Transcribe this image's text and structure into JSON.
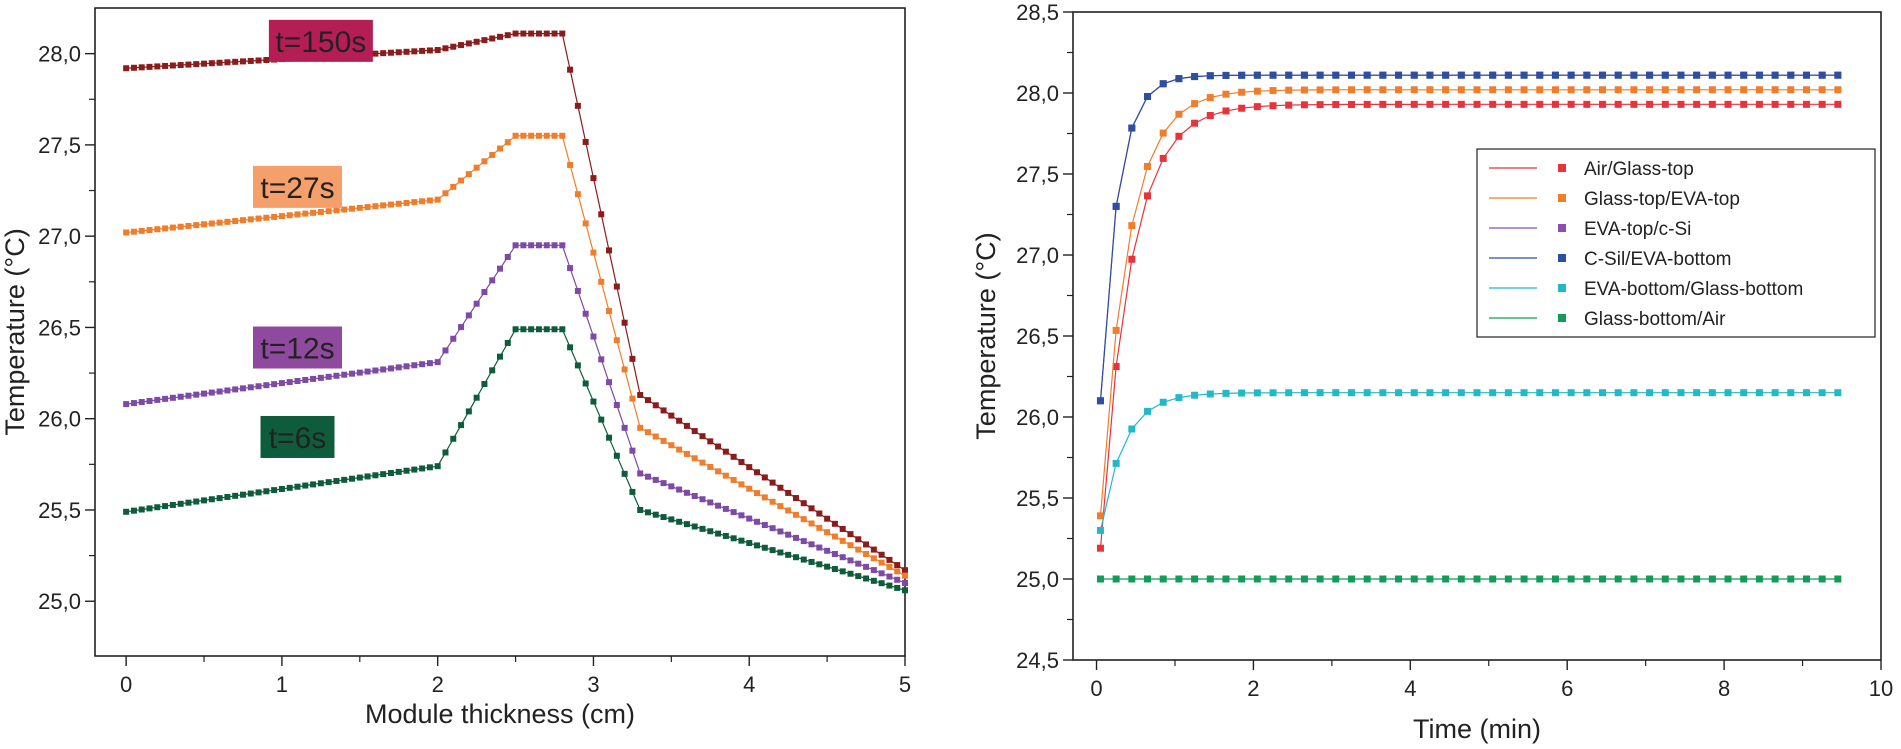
{
  "chart_data": [
    {
      "type": "line",
      "xlabel": "Module thickness (cm)",
      "ylabel": "Temperature (°C)",
      "xlim": [
        -0.2,
        5
      ],
      "ylim": [
        24.7,
        28.25
      ],
      "xticks": [
        0,
        1,
        2,
        3,
        4,
        5
      ],
      "xtick_labels": [
        "0",
        "1",
        "2",
        "3",
        "4",
        "5"
      ],
      "yticks": [
        25.0,
        25.5,
        26.0,
        26.5,
        27.0,
        27.5,
        28.0
      ],
      "ytick_labels": [
        "25,0",
        "25,5",
        "26,0",
        "26,5",
        "27,0",
        "27,5",
        "28,0"
      ],
      "series": [
        {
          "name": "t=150s",
          "color": "#8b1c1c",
          "label_bg": "#b51e55",
          "points": [
            [
              0,
              27.92
            ],
            [
              2.0,
              28.02
            ],
            [
              2.5,
              28.11
            ],
            [
              2.8,
              28.11
            ],
            [
              3.3,
              26.13
            ],
            [
              5.0,
              25.17
            ]
          ]
        },
        {
          "name": "t=27s",
          "color": "#f07d2b",
          "label_bg": "#f5a06a",
          "points": [
            [
              0,
              27.02
            ],
            [
              2.0,
              27.2
            ],
            [
              2.5,
              27.55
            ],
            [
              2.8,
              27.55
            ],
            [
              3.3,
              25.95
            ],
            [
              5.0,
              25.14
            ]
          ]
        },
        {
          "name": "t=12s",
          "color": "#7d4aa6",
          "label_bg": "#8f4a9f",
          "points": [
            [
              0,
              26.08
            ],
            [
              2.0,
              26.31
            ],
            [
              2.5,
              26.95
            ],
            [
              2.8,
              26.95
            ],
            [
              3.3,
              25.7
            ],
            [
              5.0,
              25.1
            ]
          ]
        },
        {
          "name": "t=6s",
          "color": "#0f5c3d",
          "label_bg": "#0f5c3d",
          "points": [
            [
              0,
              25.49
            ],
            [
              2.0,
              25.74
            ],
            [
              2.5,
              26.49
            ],
            [
              2.8,
              26.49
            ],
            [
              3.3,
              25.5
            ],
            [
              5.0,
              25.06
            ]
          ]
        }
      ]
    },
    {
      "type": "line",
      "xlabel": "Time (min)",
      "ylabel": "Temperature (°C)",
      "xlim": [
        -0.3,
        10
      ],
      "ylim": [
        24.5,
        28.5
      ],
      "xticks": [
        0,
        2,
        4,
        6,
        8,
        10
      ],
      "xtick_labels": [
        "0",
        "2",
        "4",
        "6",
        "8",
        "10"
      ],
      "yticks": [
        24.5,
        25.0,
        25.5,
        26.0,
        26.5,
        27.0,
        27.5,
        28.0,
        28.5
      ],
      "ytick_labels": [
        "24,5",
        "25,0",
        "25,5",
        "26,0",
        "26,5",
        "27,0",
        "27,5",
        "28,0",
        "28,5"
      ],
      "series": [
        {
          "name": "Air/Glass-top",
          "color": "#e8323c",
          "start": 25.19,
          "final": 27.93,
          "tau": 0.38
        },
        {
          "name": "Glass-top/EVA-top",
          "color": "#f07d2b",
          "start": 25.39,
          "final": 28.02,
          "tau": 0.35
        },
        {
          "name": "EVA-top/c-Si",
          "color": "#8e4cb5",
          "start": 26.1,
          "final": 28.11,
          "tau": 0.22
        },
        {
          "name": "C-Sil/EVA-bottom",
          "color": "#2d4fa0",
          "start": 26.1,
          "final": 28.11,
          "tau": 0.22
        },
        {
          "name": "EVA-bottom/Glass-bottom",
          "color": "#23b8c8",
          "start": 25.3,
          "final": 26.15,
          "tau": 0.3
        },
        {
          "name": "Glass-bottom/Air",
          "color": "#139c58",
          "start": 25.0,
          "final": 25.0,
          "tau": 0.3
        }
      ]
    }
  ]
}
